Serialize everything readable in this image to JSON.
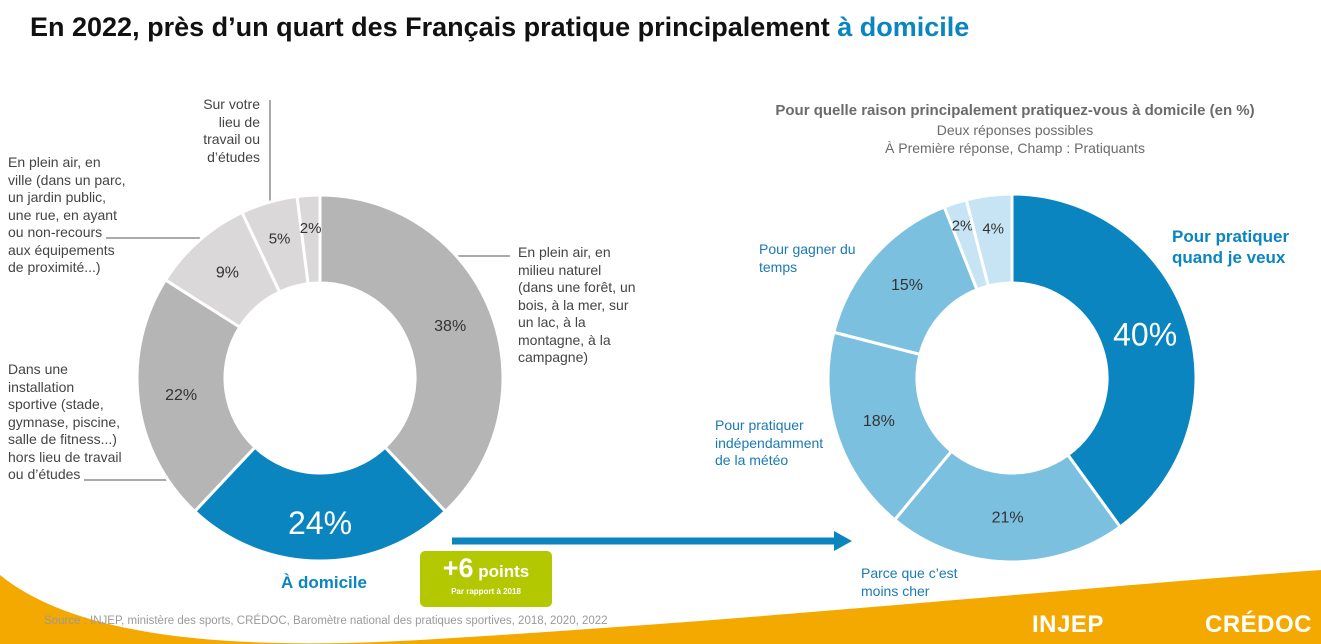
{
  "title": {
    "main": "En 2022, près d’un quart des Français pratique principalement ",
    "highlight": "à domicile"
  },
  "colors": {
    "accent_blue": "#0a85bf",
    "dark_gray": "#b5b5b5",
    "light_gray": "#dad8d8",
    "green": "#b3c800",
    "orange": "#f4a900"
  },
  "chart_data": [
    {
      "type": "pie",
      "subtype": "donut",
      "slices": [
        {
          "label": "En plein air, en milieu naturel (dans une forêt, un bois, à la mer, sur un lac, à la montagne, à la campagne)",
          "value": 38,
          "value_label": "38%",
          "color": "#b5b5b5"
        },
        {
          "label": "À domicile",
          "value": 24,
          "value_label": "24%",
          "color": "#0a85bf"
        },
        {
          "label": "Dans une installation sportive (stade, gymnase, piscine, salle de fitness...) hors lieu de travail ou d’études",
          "value": 22,
          "value_label": "22%",
          "color": "#b5b5b5"
        },
        {
          "label": "En plein air, en ville (dans un parc, un jardin public, une rue, en ayant ou non-recours aux équipements de proximité...)",
          "value": 9,
          "value_label": "9%",
          "color": "#dad8d8"
        },
        {
          "label": "Sur votre lieu de travail ou d’études",
          "value": 5,
          "value_label": "5%",
          "color": "#dad8d8"
        },
        {
          "label": "",
          "value": 2,
          "value_label": "2%",
          "color": "#dad8d8"
        }
      ]
    },
    {
      "type": "pie",
      "subtype": "donut",
      "title": "Pour quelle raison principalement pratiquez-vous à domicile (en %)",
      "subtitle_lines": [
        "Deux réponses possibles",
        "À Première réponse, Champ : Pratiquants"
      ],
      "slices": [
        {
          "label": "Pour pratiquer quand je veux",
          "value": 40,
          "value_label": "40%",
          "color": "#0a85bf"
        },
        {
          "label": "Parce que c’est moins cher",
          "value": 21,
          "value_label": "21%",
          "color": "#7cc0e0"
        },
        {
          "label": "Pour pratiquer indépendamment de la météo",
          "value": 18,
          "value_label": "18%",
          "color": "#7cc0e0"
        },
        {
          "label": "Pour gagner du temps",
          "value": 15,
          "value_label": "15%",
          "color": "#7cc0e0"
        },
        {
          "label": "",
          "value": 2,
          "value_label": "2%",
          "color": "#c6e4f3"
        },
        {
          "label": "",
          "value": 4,
          "value_label": "4%",
          "color": "#c6e4f3"
        }
      ]
    }
  ],
  "left_labels": {
    "naturel": [
      "En plein air, en",
      "milieu naturel",
      "(dans une forêt, un",
      "bois, à la mer, sur",
      "un lac, à la",
      "montagne, à la",
      "campagne)"
    ],
    "ville": [
      "En plein air, en",
      "ville (dans un parc,",
      "un jardin public,",
      "une rue, en ayant",
      "ou non-recours",
      "aux équipements",
      "de proximité...)"
    ],
    "travail": [
      "Sur votre",
      "lieu de",
      "travail ou",
      "d’études"
    ],
    "installation": [
      "Dans une",
      "installation",
      "sportive (stade,",
      "gymnase, piscine,",
      "salle de fitness...)",
      "hors lieu de travail",
      "ou d’études"
    ],
    "domicile": "À domicile"
  },
  "right_labels": {
    "quand": [
      "Pour pratiquer",
      "quand je veux"
    ],
    "temps": [
      "Pour gagner du",
      "temps"
    ],
    "meteo": [
      "Pour pratiquer",
      "indépendamment",
      "de la météo"
    ],
    "cher": [
      "Parce que c’est",
      "moins cher"
    ]
  },
  "points_box": {
    "value": "+6",
    "unit": " points",
    "note": "Par rapport à 2018"
  },
  "source": "Source : INJEP, ministère des sports, CRÉDOC, Baromètre national des pratiques sportives, 2018, 2020, 2022",
  "logos": {
    "left": "INJEP",
    "right": "CRÉDOC"
  }
}
